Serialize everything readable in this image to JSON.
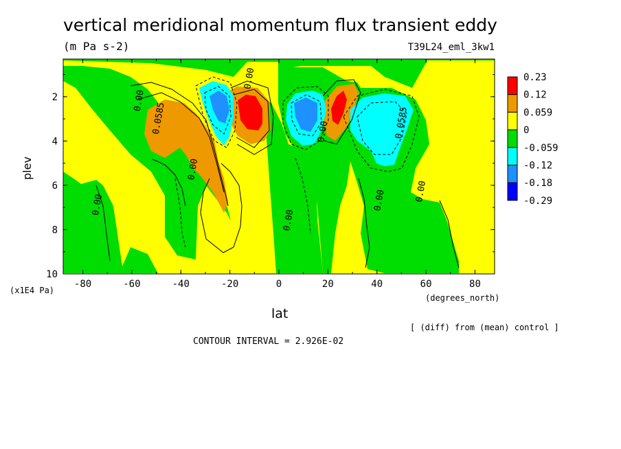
{
  "header": {
    "title": "vertical meridional momentum flux transient eddy",
    "units": "(m Pa s-2)",
    "run_label": "T39L24_eml_3kw1"
  },
  "footer": {
    "contour_interval": "CONTOUR INTERVAL = 2.926E-02",
    "diff_note": "[ (diff) from (mean) control ]"
  },
  "chart_data": {
    "type": "heatmap",
    "title": "vertical meridional momentum flux transient eddy",
    "subtitle": "(m Pa s-2)",
    "xlabel": "lat",
    "xunits": "(degrees_north)",
    "ylabel": "plev",
    "yunits": "(x1E4 Pa)",
    "xlim": [
      -88,
      88
    ],
    "ylim": [
      10,
      0.3
    ],
    "x_ticks": [
      -80,
      -60,
      -40,
      -20,
      0,
      20,
      40,
      60,
      80
    ],
    "x_tick_labels": [
      "-80",
      "-60",
      "-40",
      "-20",
      "0",
      "20",
      "40",
      "60",
      "80"
    ],
    "y_ticks": [
      2,
      4,
      6,
      8,
      10
    ],
    "y_tick_labels": [
      "2",
      "4",
      "6",
      "8",
      "10"
    ],
    "colorbar": {
      "labels": [
        "0.23",
        "0.12",
        "0.059",
        "0",
        "-0.059",
        "-0.12",
        "-0.18",
        "-0.29"
      ],
      "colors": [
        "#ff0000",
        "#ee9900",
        "#ffff00",
        "#00dd00",
        "#00ffff",
        "#1e90ff",
        "#0000ff"
      ]
    },
    "contour_labels": [
      {
        "text": "0.00",
        "lat": -56,
        "plev": 2.2
      },
      {
        "text": "0.0585",
        "lat": -48,
        "plev": 3.0
      },
      {
        "text": "0.00",
        "lat": -34,
        "plev": 5.3
      },
      {
        "text": "0.00",
        "lat": -73,
        "plev": 6.9
      },
      {
        "text": "0.00",
        "lat": -11,
        "plev": 1.2
      },
      {
        "text": "0.00",
        "lat": 5,
        "plev": 7.6
      },
      {
        "text": "0.00",
        "lat": 19,
        "plev": 3.6
      },
      {
        "text": "0.00",
        "lat": 42,
        "plev": 6.7
      },
      {
        "text": "0.0585",
        "lat": 51,
        "plev": 3.2
      },
      {
        "text": "0.00",
        "lat": 59,
        "plev": 6.3
      }
    ],
    "features": [
      {
        "sign": "positive",
        "peak": 0.23,
        "lat": -12,
        "plev": 2.4
      },
      {
        "sign": "negative",
        "peak": -0.18,
        "lat": -25,
        "plev": 2.2
      },
      {
        "sign": "positive",
        "peak": 0.23,
        "lat": 25,
        "plev": 2.5
      },
      {
        "sign": "negative",
        "peak": -0.18,
        "lat": 13,
        "plev": 2.4
      },
      {
        "sign": "negative",
        "peak": -0.12,
        "lat": 40,
        "plev": 3.5
      },
      {
        "sign": "positive",
        "peak": 0.12,
        "lat": -40,
        "plev": 3.8
      }
    ]
  }
}
